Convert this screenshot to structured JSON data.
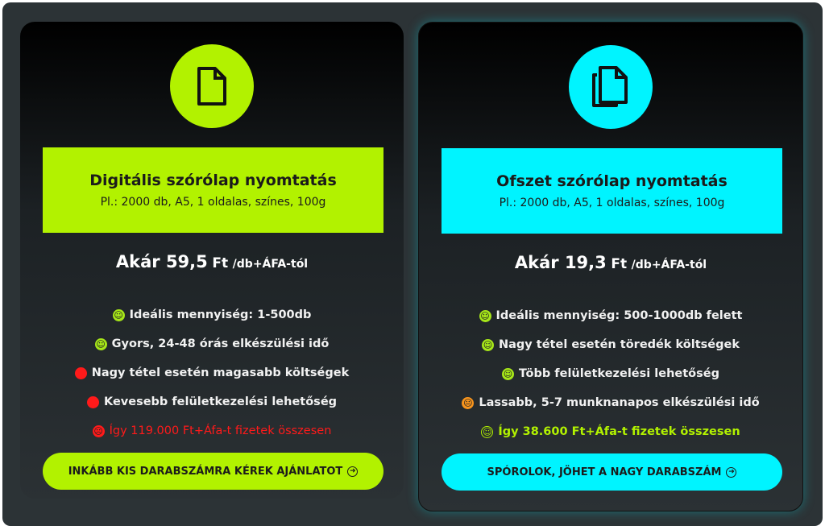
{
  "colors": {
    "lime": "#b2f200",
    "cyan": "#00f4ff",
    "red": "#ff1a1a",
    "orange": "#f7941d"
  },
  "cards": [
    {
      "icon": "document-icon",
      "title": "Digitális szórólap nyomtatás",
      "subtitle": "Pl.: 2000 db, A5, 1 oldalas, színes, 100g",
      "price_prefix": "Akár 59,5",
      "price_currency": "Ft",
      "price_unit": "/db+ÁFA-tól",
      "features": [
        {
          "icon": "smile",
          "text": "Ideális mennyiség: 1-500db"
        },
        {
          "icon": "smile",
          "text": "Gyors, 24-48 órás elkészülési idő"
        },
        {
          "icon": "red-dot",
          "text": "Nagy tétel esetén magasabb költségek"
        },
        {
          "icon": "red-dot",
          "text": "Kevesebb felületkezelési lehetőség"
        },
        {
          "icon": "sad",
          "text": "Így 119.000 Ft+Áfa-t fizetek összesen"
        }
      ],
      "button": "INKÁBB KIS DARABSZÁMRA KÉREK AJÁNLATOT"
    },
    {
      "icon": "copy-documents-icon",
      "title": "Ofszet szórólap nyomtatás",
      "subtitle": "Pl.: 2000 db, A5, 1 oldalas, színes, 100g",
      "price_prefix": "Akár 19,3",
      "price_currency": "Ft",
      "price_unit": "/db+ÁFA-tól",
      "features": [
        {
          "icon": "smile",
          "text": "Ideális mennyiség: 500-1000db felett"
        },
        {
          "icon": "smile",
          "text": "Nagy tétel esetén töredék költségek"
        },
        {
          "icon": "smile",
          "text": "Több felületkezelési lehetőség"
        },
        {
          "icon": "neutral",
          "text": "Lassabb, 5-7 munknanapos elkészülési idő"
        },
        {
          "icon": "smile-outline",
          "text": "Így 38.600 Ft+Áfa-t fizetek összesen"
        }
      ],
      "button": "SPÓROLOK, JÖHET A NAGY DARABSZÁM"
    }
  ]
}
